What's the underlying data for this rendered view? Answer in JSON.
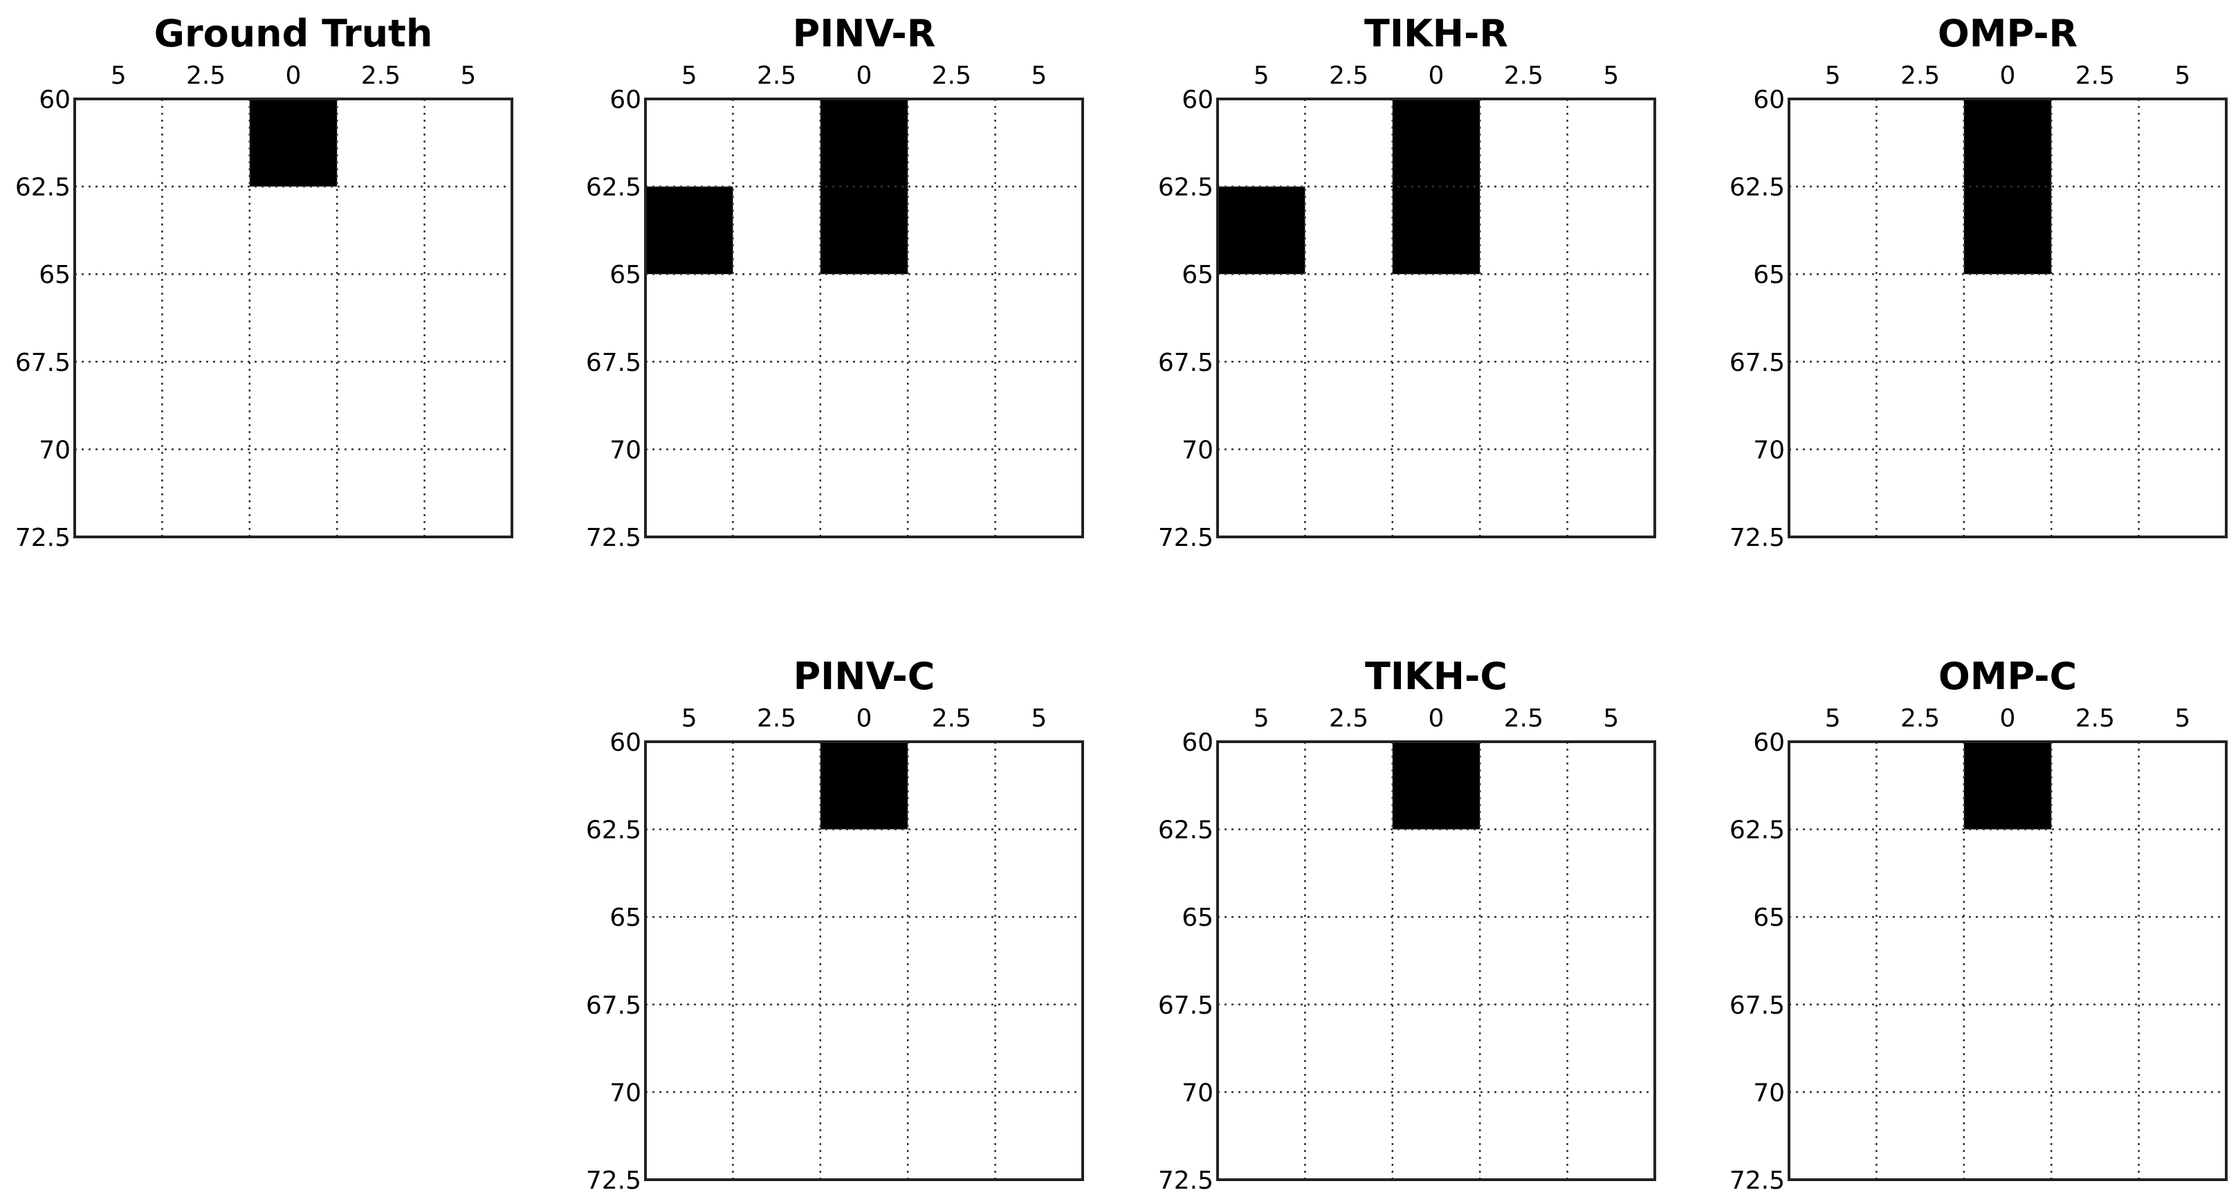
{
  "chart_data": [
    {
      "type": "heatmap",
      "title": "Ground Truth",
      "x_tick_labels": [
        "5",
        "2.5",
        "0",
        "2.5",
        "5"
      ],
      "y_tick_labels": [
        "60",
        "62.5",
        "65",
        "67.5",
        "70",
        "72.5"
      ],
      "xlim": [
        -6.25,
        6.25
      ],
      "ylim": [
        60,
        72.5
      ],
      "grid": true,
      "cells": [
        {
          "x": 0,
          "y_from": 60,
          "y_to": 62.5,
          "value": 1
        }
      ]
    },
    {
      "type": "heatmap",
      "title": "PINV-R",
      "x_tick_labels": [
        "5",
        "2.5",
        "0",
        "2.5",
        "5"
      ],
      "y_tick_labels": [
        "60",
        "62.5",
        "65",
        "67.5",
        "70",
        "72.5"
      ],
      "xlim": [
        -6.25,
        6.25
      ],
      "ylim": [
        60,
        72.5
      ],
      "grid": true,
      "cells": [
        {
          "x": 0,
          "y_from": 60,
          "y_to": 65,
          "value": 1
        },
        {
          "x": -5,
          "y_from": 62.5,
          "y_to": 65,
          "value": 1
        }
      ]
    },
    {
      "type": "heatmap",
      "title": "TIKH-R",
      "x_tick_labels": [
        "5",
        "2.5",
        "0",
        "2.5",
        "5"
      ],
      "y_tick_labels": [
        "60",
        "62.5",
        "65",
        "67.5",
        "70",
        "72.5"
      ],
      "xlim": [
        -6.25,
        6.25
      ],
      "ylim": [
        60,
        72.5
      ],
      "grid": true,
      "cells": [
        {
          "x": 0,
          "y_from": 60,
          "y_to": 65,
          "value": 1
        },
        {
          "x": -5,
          "y_from": 62.5,
          "y_to": 65,
          "value": 1
        }
      ]
    },
    {
      "type": "heatmap",
      "title": "OMP-R",
      "x_tick_labels": [
        "5",
        "2.5",
        "0",
        "2.5",
        "5"
      ],
      "y_tick_labels": [
        "60",
        "62.5",
        "65",
        "67.5",
        "70",
        "72.5"
      ],
      "xlim": [
        -6.25,
        6.25
      ],
      "ylim": [
        60,
        72.5
      ],
      "grid": true,
      "cells": [
        {
          "x": 0,
          "y_from": 60,
          "y_to": 65,
          "value": 1
        }
      ]
    },
    {
      "type": "heatmap",
      "title": "PINV-C",
      "x_tick_labels": [
        "5",
        "2.5",
        "0",
        "2.5",
        "5"
      ],
      "y_tick_labels": [
        "60",
        "62.5",
        "65",
        "67.5",
        "70",
        "72.5"
      ],
      "xlim": [
        -6.25,
        6.25
      ],
      "ylim": [
        60,
        72.5
      ],
      "grid": true,
      "cells": [
        {
          "x": 0,
          "y_from": 60,
          "y_to": 62.5,
          "value": 1
        }
      ]
    },
    {
      "type": "heatmap",
      "title": "TIKH-C",
      "x_tick_labels": [
        "5",
        "2.5",
        "0",
        "2.5",
        "5"
      ],
      "y_tick_labels": [
        "60",
        "62.5",
        "65",
        "67.5",
        "70",
        "72.5"
      ],
      "xlim": [
        -6.25,
        6.25
      ],
      "ylim": [
        60,
        72.5
      ],
      "grid": true,
      "cells": [
        {
          "x": 0,
          "y_from": 60,
          "y_to": 62.5,
          "value": 1
        }
      ]
    },
    {
      "type": "heatmap",
      "title": "OMP-C",
      "x_tick_labels": [
        "5",
        "2.5",
        "0",
        "2.5",
        "5"
      ],
      "y_tick_labels": [
        "60",
        "62.5",
        "65",
        "67.5",
        "70",
        "72.5"
      ],
      "xlim": [
        -6.25,
        6.25
      ],
      "ylim": [
        60,
        72.5
      ],
      "grid": true,
      "cells": [
        {
          "x": 0,
          "y_from": 60,
          "y_to": 62.5,
          "value": 1
        }
      ]
    }
  ]
}
